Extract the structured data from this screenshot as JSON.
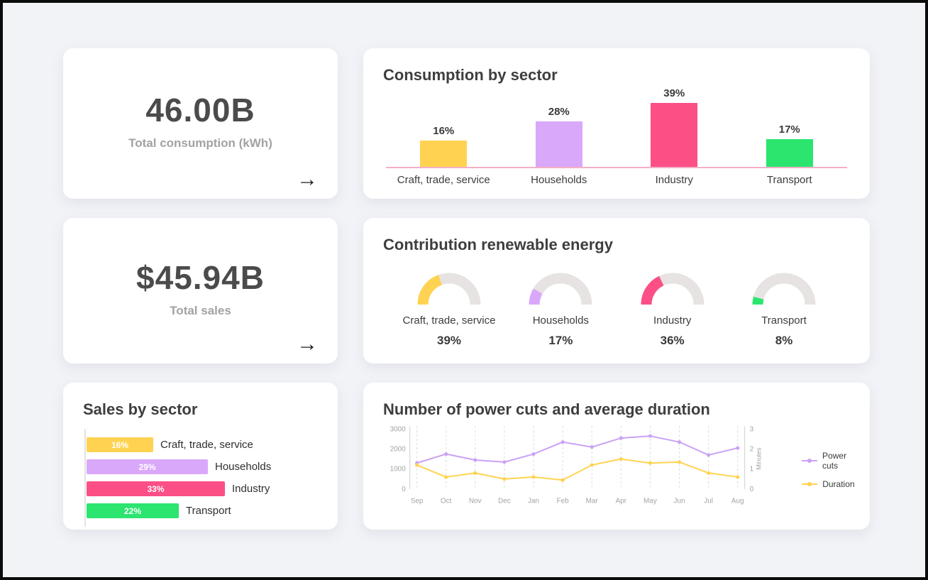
{
  "colors": {
    "sectors": [
      "#FFD351",
      "#D9A8FA",
      "#FB4F86",
      "#2BE56F"
    ],
    "gauge_track": "#E7E3E3",
    "bar_axis_pink": "#F5AFC8",
    "page_background": "#F2F3F7",
    "card_background": "#FFFFFF",
    "title_text": "#3E3E3E",
    "axis_text": "#A3A3A3",
    "axis_line": "#CFCFCF"
  },
  "kpi_cards": [
    {
      "value": "46.00B",
      "label": "Total consumption (kWh)",
      "arrow_glyph": "→"
    },
    {
      "value": "$45.94B",
      "label": "Total sales",
      "arrow_glyph": "→"
    }
  ],
  "chart_data": [
    {
      "id": "consumption_by_sector",
      "type": "bar",
      "title": "Consumption by sector",
      "categories": [
        "Craft, trade, service",
        "Households",
        "Industry",
        "Transport"
      ],
      "values": [
        16,
        28,
        39,
        17
      ],
      "value_suffix": "%",
      "ylim": [
        0,
        40
      ],
      "grid": false
    },
    {
      "id": "contribution_renewable_energy",
      "type": "gauge",
      "title": "Contribution renewable energy",
      "categories": [
        "Craft, trade, service",
        "Households",
        "Industry",
        "Transport"
      ],
      "values": [
        39,
        17,
        36,
        8
      ],
      "value_suffix": "%",
      "gauge_max": 100
    },
    {
      "id": "sales_by_sector",
      "type": "hbar",
      "title": "Sales by sector",
      "categories": [
        "Craft, trade, service",
        "Households",
        "Industry",
        "Transport"
      ],
      "values": [
        16,
        29,
        33,
        22
      ],
      "value_suffix": "%",
      "xlim": [
        0,
        35
      ]
    },
    {
      "id": "power_cuts_and_duration",
      "type": "line",
      "title": "Number of power cuts and average duration",
      "x": [
        "Sep",
        "Oct",
        "Nov",
        "Dec",
        "Jan",
        "Feb",
        "Mar",
        "Apr",
        "May",
        "Jun",
        "Jul",
        "Aug"
      ],
      "series": [
        {
          "name": "Power cuts",
          "axis": "left",
          "color": "#C9A2F6",
          "values": [
            1300,
            1750,
            1450,
            1350,
            1750,
            2350,
            2100,
            2550,
            2650,
            2350,
            1700,
            2050
          ]
        },
        {
          "name": "Duration",
          "axis": "right",
          "color": "#FFD351",
          "values": [
            1.2,
            0.6,
            0.8,
            0.5,
            0.6,
            0.45,
            1.2,
            1.5,
            1.3,
            1.35,
            0.8,
            0.6
          ]
        }
      ],
      "left_axis": {
        "ticks": [
          0,
          1000,
          2000,
          3000
        ],
        "max": 3000
      },
      "right_axis": {
        "ticks": [
          0,
          1,
          2,
          3
        ],
        "max": 3,
        "label": "Minutes"
      },
      "legend_position": "right",
      "grid": "vertical-dashed"
    }
  ]
}
